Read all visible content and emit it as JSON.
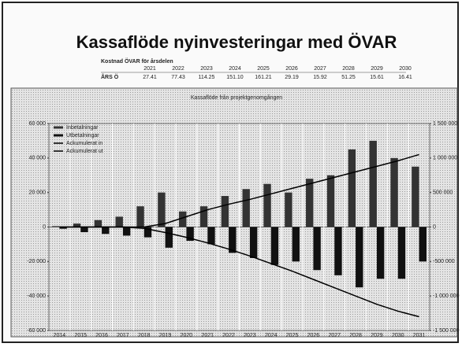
{
  "slide_title": "Kassaflöde nyinvesteringar med ÖVAR",
  "table": {
    "title": "Kostnad ÖVAR för årsdelen",
    "row_label": "ÅRS Ö",
    "years": [
      "2021",
      "2022",
      "2023",
      "2024",
      "2025",
      "2026",
      "2027",
      "2028",
      "2029",
      "2030"
    ],
    "values": [
      "27.41",
      "77.43",
      "114.25",
      "151.10",
      "161.21",
      "29.19",
      "15.92",
      "51.25",
      "15.61",
      "16.41"
    ]
  },
  "chart_data": {
    "type": "bar",
    "title": "Kassaflöde från projektgenomgången",
    "categories": [
      "2014",
      "2015",
      "2016",
      "2017",
      "2018",
      "2019",
      "2020",
      "2021",
      "2022",
      "2023",
      "2024",
      "2025",
      "2026",
      "2027",
      "2028",
      "2029",
      "2030",
      "2031"
    ],
    "series": [
      {
        "name": "Inbetalningar",
        "color": "#333333",
        "values": [
          500,
          2000,
          4000,
          6000,
          12000,
          20000,
          9000,
          12000,
          18000,
          22000,
          25000,
          20000,
          28000,
          30000,
          45000,
          50000,
          40000,
          35000
        ]
      },
      {
        "name": "Utbetalningar",
        "color": "#111111",
        "values": [
          -1000,
          -3000,
          -4000,
          -5000,
          -6000,
          -12000,
          -8000,
          -10000,
          -15000,
          -18000,
          -22000,
          -20000,
          -25000,
          -28000,
          -35000,
          -30000,
          -30000,
          -20000
        ]
      },
      {
        "name": "Ackumulerat in",
        "color": "#000000",
        "axis": "y2",
        "line": true,
        "values": [
          0,
          0,
          0,
          0,
          0,
          50000,
          150000,
          250000,
          330000,
          400000,
          480000,
          560000,
          640000,
          720000,
          800000,
          880000,
          960000,
          1050000
        ]
      },
      {
        "name": "Ackumulerat ut",
        "color": "#000000",
        "axis": "y2",
        "line": true,
        "values": [
          0,
          0,
          0,
          0,
          -20000,
          -80000,
          -150000,
          -230000,
          -320000,
          -420000,
          -530000,
          -640000,
          -760000,
          -880000,
          -1000000,
          -1120000,
          -1220000,
          -1300000
        ]
      }
    ],
    "ylim": [
      -60000,
      60000
    ],
    "yticks": [
      {
        "value": 60000,
        "label": "60 000"
      },
      {
        "value": 40000,
        "label": "40 000"
      },
      {
        "value": 20000,
        "label": "20 000"
      },
      0,
      {
        "value": -20000,
        "label": "-20 000"
      },
      {
        "value": -40000,
        "label": "-40 000"
      },
      {
        "value": -60000,
        "label": "-60 000"
      }
    ],
    "y2lim": [
      -1500000,
      1500000
    ],
    "y2ticks": [
      {
        "value": 1500000,
        "label": "1 500 000"
      },
      {
        "value": 1000000,
        "label": "1 000 000"
      },
      {
        "value": 500000,
        "label": "500 000"
      },
      0,
      {
        "value": -500000,
        "label": "-500 000"
      },
      {
        "value": -1000000,
        "label": "-1 000 000"
      },
      {
        "value": -1500000,
        "label": "-1 500 000"
      }
    ],
    "grid": true
  }
}
